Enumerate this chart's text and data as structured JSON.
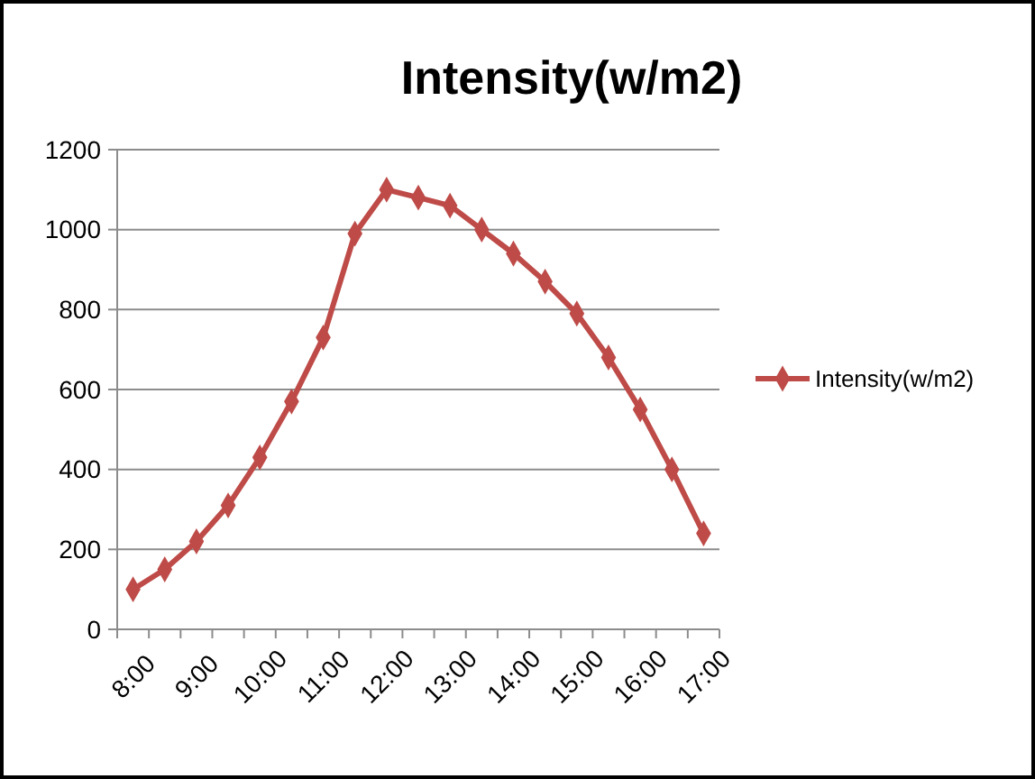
{
  "chart_data": {
    "type": "line",
    "title": "Intensity(w/m2)",
    "categories": [
      "8:00",
      null,
      "9:00",
      null,
      "10:00",
      null,
      "11:00",
      null,
      "12:00",
      null,
      "13:00",
      null,
      "14:00",
      null,
      "15:00",
      null,
      "16:00",
      null,
      "17:00"
    ],
    "series": [
      {
        "name": "Intensity(w/m2)",
        "color": "#be4b48",
        "values": [
          100,
          150,
          220,
          310,
          430,
          570,
          730,
          990,
          1100,
          1080,
          1060,
          1000,
          940,
          870,
          790,
          680,
          550,
          400,
          240
        ]
      }
    ],
    "ylim": [
      0,
      1200
    ],
    "yticks": [
      0,
      200,
      400,
      600,
      800,
      1000,
      1200
    ],
    "grid": "y",
    "legend": "right",
    "marker": "diamond",
    "line_style": "solid"
  }
}
